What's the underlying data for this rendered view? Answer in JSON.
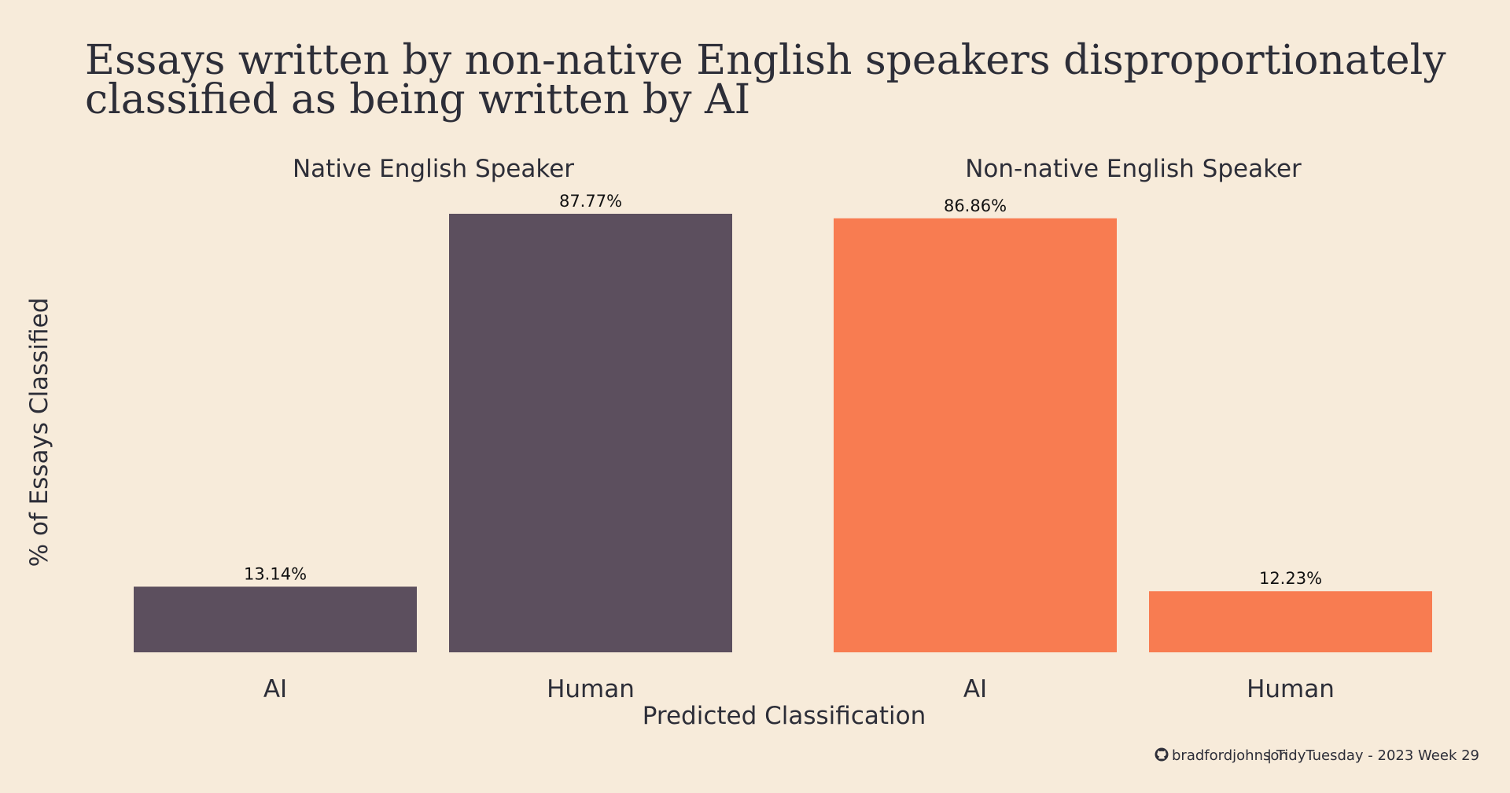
{
  "title_lines": [
    "Essays written by non-native English speakers disproportionately",
    "classified as being written by AI"
  ],
  "caption": {
    "icon": "github-icon",
    "user": "bradfordjohnson",
    "text": "| TidyTuesday - 2023 Week 29"
  },
  "colors": {
    "background": "#f7ebda",
    "native": "#5c4f5e",
    "non_native": "#f87c51",
    "text": "#2d2e38"
  },
  "chart_data": {
    "type": "bar",
    "title": "Essays written by non-native English speakers disproportionately classified as being written by AI",
    "xlabel": "Predicted Classification",
    "ylabel": "% of Essays Classified",
    "ylim": [
      0,
      90
    ],
    "grid": false,
    "legend": "none",
    "facets": [
      {
        "name": "Native English Speaker",
        "categories": [
          "AI",
          "Human"
        ],
        "values": [
          13.14,
          87.77
        ],
        "labels": [
          "13.14%",
          "87.77%"
        ],
        "color": "#5c4f5e"
      },
      {
        "name": "Non-native English Speaker",
        "categories": [
          "AI",
          "Human"
        ],
        "values": [
          86.86,
          12.23
        ],
        "labels": [
          "86.86%",
          "12.23%"
        ],
        "color": "#f87c51"
      }
    ]
  }
}
